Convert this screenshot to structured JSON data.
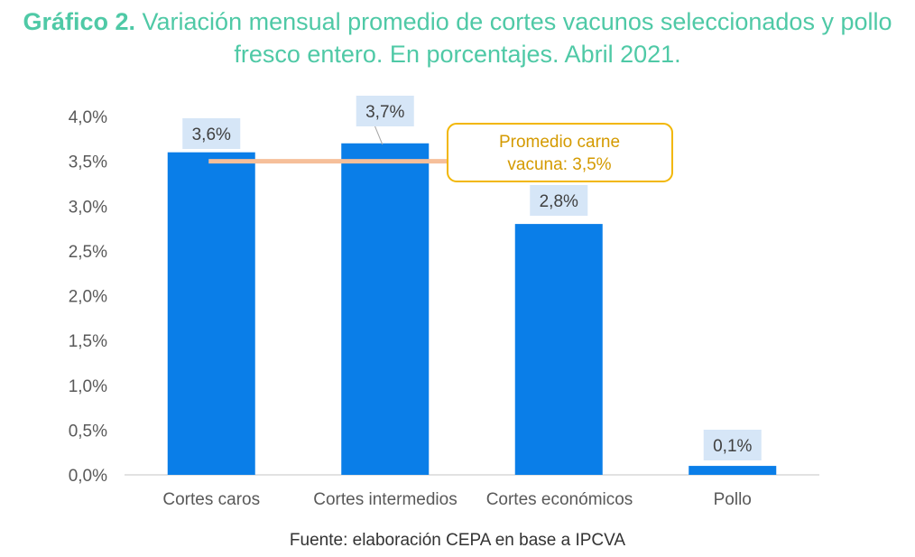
{
  "title": {
    "prefix": "Gráfico 2.",
    "text": " Variación mensual promedio de cortes vacunos seleccionados y pollo fresco entero. En porcentajes. Abril 2021."
  },
  "source": "Fuente: elaboración CEPA en base a IPCVA",
  "colors": {
    "title": "#4fc9a6",
    "bar": "#0a7ee8",
    "label_bg": "#d6e6f7",
    "avg_line": "#f6bf9a",
    "annotation_border": "#f2b705",
    "annotation_text": "#d49a00",
    "axis_text": "#595959"
  },
  "chart_data": {
    "type": "bar",
    "title": "Variación mensual promedio de cortes vacunos seleccionados y pollo fresco entero. En porcentajes. Abril 2021.",
    "categories": [
      "Cortes caros",
      "Cortes intermedios",
      "Cortes económicos",
      "Pollo"
    ],
    "values": [
      3.6,
      3.7,
      2.8,
      0.1
    ],
    "data_labels": [
      "3,6%",
      "3,7%",
      "2,8%",
      "0,1%"
    ],
    "ylim": [
      0,
      4.0
    ],
    "yticks": [
      0,
      0.5,
      1.0,
      1.5,
      2.0,
      2.5,
      3.0,
      3.5,
      4.0
    ],
    "ytick_labels": [
      "0,0%",
      "0,5%",
      "1,0%",
      "1,5%",
      "2,0%",
      "2,5%",
      "3,0%",
      "3,5%",
      "4,0%"
    ],
    "grid": false,
    "reference_line": {
      "value": 3.5,
      "label_line1": "Promedio carne",
      "label_line2": "vacuna: 3,5%"
    }
  }
}
